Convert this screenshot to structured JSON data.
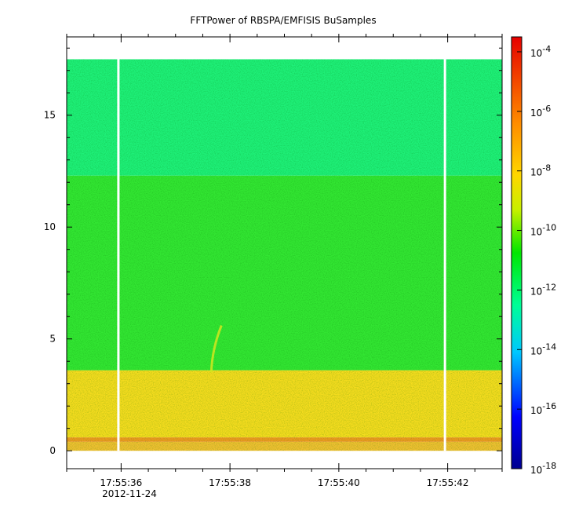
{
  "chart_data": {
    "type": "heatmap",
    "title": "FFTPower of RBSPA/EMFISIS  BuSamples",
    "xlabel": "",
    "ylabel": "",
    "date_label": "2012-11-24",
    "x_range": [
      "17:55:35.0",
      "17:55:43.0"
    ],
    "x_ticks": [
      "17:55:36",
      "17:55:38",
      "17:55:40",
      "17:55:42"
    ],
    "y_range": [
      -0.8,
      18.5
    ],
    "y_ticks": [
      "0",
      "5",
      "10",
      "15"
    ],
    "colorbar": {
      "scale": "log",
      "range": [
        "1e-18",
        "1e-3.5"
      ],
      "tick_labels": [
        {
          "base": "10",
          "exp": "-4"
        },
        {
          "base": "10",
          "exp": "-6"
        },
        {
          "base": "10",
          "exp": "-8"
        },
        {
          "base": "10",
          "exp": "-10"
        },
        {
          "base": "10",
          "exp": "-12"
        },
        {
          "base": "10",
          "exp": "-14"
        },
        {
          "base": "10",
          "exp": "-16"
        },
        {
          "base": "10",
          "exp": "-18"
        }
      ],
      "colormap": [
        "#00008f",
        "#0000ff",
        "#00c8ff",
        "#00ff96",
        "#00e600",
        "#c8f000",
        "#ffd700",
        "#ff8c00",
        "#e60000"
      ]
    },
    "data_time_span": [
      "17:55:35.0",
      "17:55:43.0"
    ],
    "frequency_bands": [
      {
        "y_range": [
          0.0,
          0.4
        ],
        "log10_power": -8.2,
        "color": "#f0c030"
      },
      {
        "y_range": [
          0.4,
          0.6
        ],
        "log10_power": -7.3,
        "color": "#f09a20"
      },
      {
        "y_range": [
          0.6,
          3.6
        ],
        "log10_power": -8.3,
        "color": "#f5dc1e"
      },
      {
        "y_range": [
          3.6,
          12.3
        ],
        "log10_power": -10.5,
        "color": "#32e632"
      },
      {
        "y_range": [
          12.3,
          17.5
        ],
        "log10_power": -11.6,
        "color": "#1ef078"
      }
    ],
    "data_gaps_time": [
      "17:55:35.95",
      "17:55:41.95"
    ],
    "features": [
      {
        "name": "whistler",
        "time": "17:55:37.7",
        "y_range": [
          3.5,
          5.6
        ]
      }
    ],
    "grid": false
  }
}
